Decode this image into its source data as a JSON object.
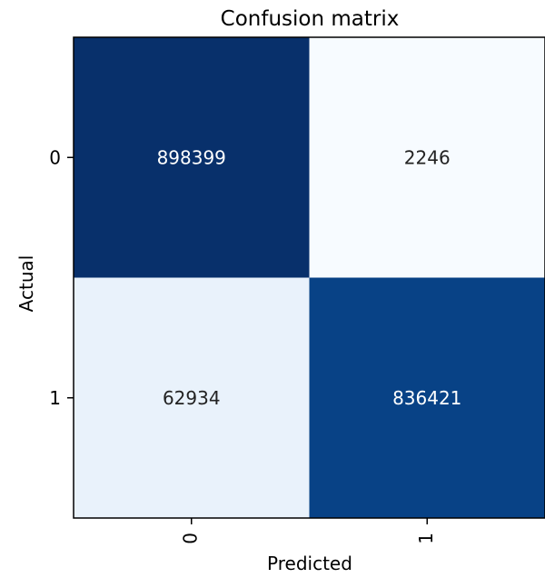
{
  "chart_data": {
    "type": "heatmap",
    "title": "Confusion matrix",
    "xlabel": "Predicted",
    "ylabel": "Actual",
    "x_categories": [
      "0",
      "1"
    ],
    "y_categories": [
      "0",
      "1"
    ],
    "values": [
      [
        898399,
        2246
      ],
      [
        62934,
        836421
      ]
    ],
    "colormap": "Blues",
    "colors": {
      "low": "#f7fbff",
      "high": "#08306b",
      "text_dark_cell": "#ffffff",
      "text_light_cell": "#222222",
      "axis": "#000000"
    }
  }
}
